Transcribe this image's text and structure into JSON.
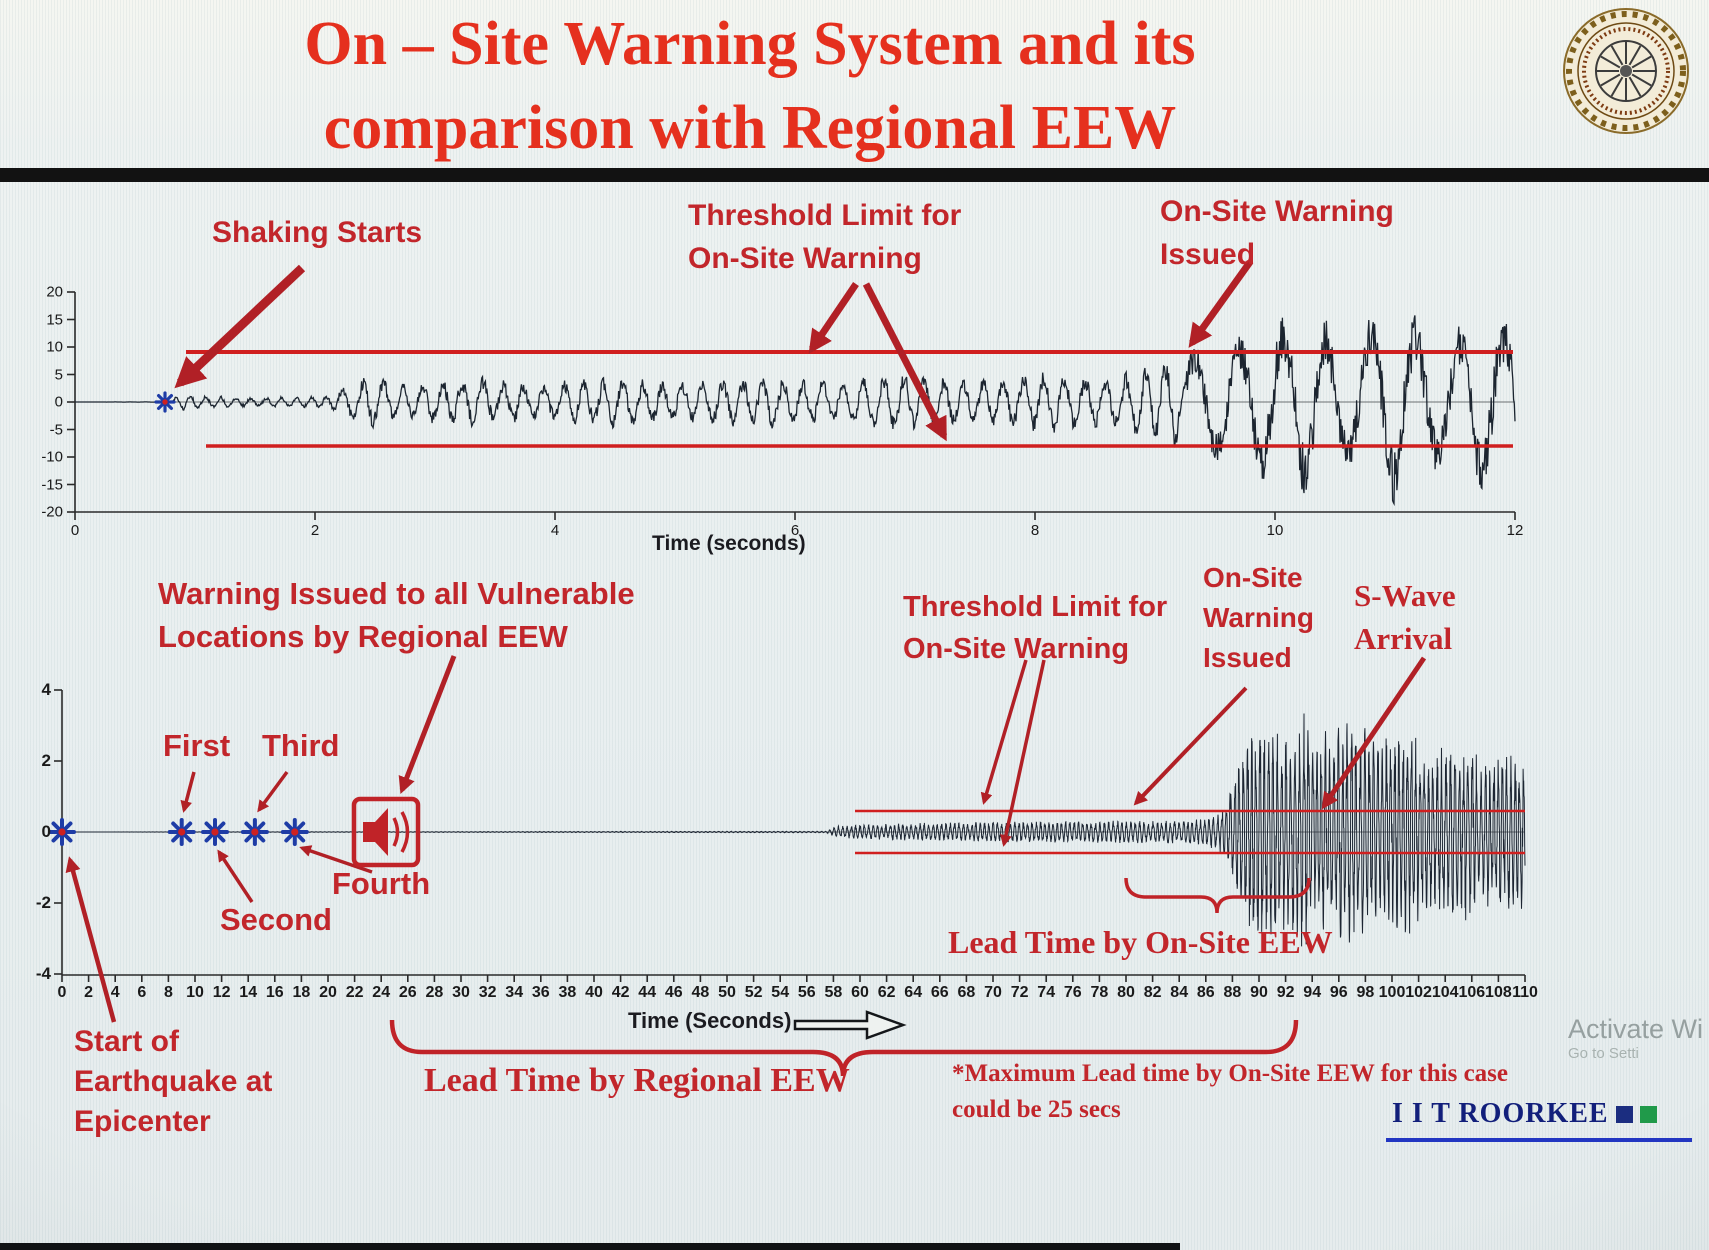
{
  "page": {
    "title_line1": "On – Site Warning System and its",
    "title_line2": "comparison with Regional EEW",
    "footnote_line1": "*Maximum Lead time by On-Site EEW for this case",
    "footnote_line2": "could be 25 secs",
    "footer_brand": "I I T ROORKEE",
    "watermark_line1": "Activate Wi",
    "watermark_line2": "Go to Setti",
    "accent_red": "#c2262b",
    "title_red": "#e5301e",
    "threshold_red": "#d01f1f",
    "waveform_color": "#1d2633",
    "marker_blue": "#1e3ca6"
  },
  "chart_data": [
    {
      "type": "line",
      "title": "",
      "xlabel": "Time (seconds)",
      "ylabel": "",
      "xlim": [
        0,
        12
      ],
      "ylim": [
        -20,
        20
      ],
      "xticks": [
        0,
        2,
        4,
        6,
        8,
        10,
        12
      ],
      "yticks": [
        20,
        15,
        10,
        5,
        0,
        -5,
        -10,
        -15,
        -20
      ],
      "grid": false,
      "threshold_upper": 9,
      "threshold_lower": -8,
      "events": {
        "shaking_starts_s": 0.8,
        "onsite_warning_issued_s": 9.3
      },
      "series": [
        {
          "name": "on-site ground motion",
          "envelope": [
            [
              0,
              0
            ],
            [
              0.78,
              0.03
            ],
            [
              0.88,
              1.4
            ],
            [
              1.4,
              0.8
            ],
            [
              2.1,
              1.0
            ],
            [
              2.45,
              4.8
            ],
            [
              2.8,
              3.0
            ],
            [
              3.3,
              4.6
            ],
            [
              3.9,
              3.2
            ],
            [
              4.5,
              4.4
            ],
            [
              5.1,
              3.4
            ],
            [
              5.7,
              4.6
            ],
            [
              6.3,
              3.6
            ],
            [
              6.9,
              5.0
            ],
            [
              7.5,
              3.8
            ],
            [
              8.1,
              5.2
            ],
            [
              8.6,
              4.2
            ],
            [
              9.0,
              6.5
            ],
            [
              9.35,
              9.5
            ],
            [
              9.8,
              12.5
            ],
            [
              10.2,
              16
            ],
            [
              10.6,
              12
            ],
            [
              11.0,
              17
            ],
            [
              11.4,
              11
            ],
            [
              11.7,
              16
            ],
            [
              12,
              13
            ]
          ]
        }
      ],
      "annotations": {
        "shaking_starts": "Shaking Starts",
        "threshold_line1": "Threshold Limit for",
        "threshold_line2": "On-Site Warning",
        "warning_line1": "On-Site Warning",
        "warning_line2": "Issued"
      }
    },
    {
      "type": "line",
      "title": "",
      "xlabel": "Time (Seconds)",
      "ylabel": "",
      "xlim": [
        0,
        110
      ],
      "ylim": [
        -4,
        4
      ],
      "xticks": [
        0,
        2,
        4,
        6,
        8,
        10,
        12,
        14,
        16,
        18,
        20,
        22,
        24,
        26,
        28,
        30,
        32,
        34,
        36,
        38,
        40,
        42,
        44,
        46,
        48,
        50,
        52,
        54,
        56,
        58,
        60,
        62,
        64,
        66,
        68,
        70,
        72,
        74,
        76,
        78,
        80,
        82,
        84,
        86,
        88,
        90,
        92,
        94,
        96,
        98,
        100,
        102,
        104,
        106,
        108,
        110
      ],
      "yticks": [
        4,
        2,
        0,
        -2,
        -4
      ],
      "grid": false,
      "threshold_upper": 0.6,
      "threshold_lower": -0.6,
      "events": {
        "earthquake_start_s": 0,
        "p_detection_stations_s": [
          9,
          11.5,
          14.5,
          17.5
        ],
        "regional_warning_issued_s": 24,
        "p_wave_at_site_s": 58,
        "onsite_warning_issued_s": 80,
        "s_wave_arrival_s": 93
      },
      "series": [
        {
          "name": "ground motion at vulnerable location",
          "envelope": [
            [
              0,
              0
            ],
            [
              57.5,
              0.02
            ],
            [
              58.2,
              0.15
            ],
            [
              61,
              0.2
            ],
            [
              65,
              0.24
            ],
            [
              70,
              0.26
            ],
            [
              76,
              0.28
            ],
            [
              82,
              0.3
            ],
            [
              86,
              0.34
            ],
            [
              87.6,
              0.7
            ],
            [
              88.6,
              2.4
            ],
            [
              90,
              3.1
            ],
            [
              91.5,
              2.5
            ],
            [
              93,
              3.2
            ],
            [
              95,
              2.6
            ],
            [
              97,
              3.0
            ],
            [
              99,
              2.3
            ],
            [
              101,
              2.8
            ],
            [
              103,
              2.1
            ],
            [
              105,
              2.4
            ],
            [
              107,
              1.9
            ],
            [
              109,
              2.2
            ],
            [
              110,
              1.9
            ]
          ]
        }
      ],
      "annotations": {
        "regional_line1": "Warning Issued to all Vulnerable",
        "regional_line2": "Locations by Regional EEW",
        "threshold_line1": "Threshold Limit for",
        "threshold_line2": "On-Site Warning",
        "onsite_line1": "On-Site",
        "onsite_line2": "Warning",
        "onsite_line3": "Issued",
        "swave_line1": "S-Wave",
        "swave_line2": "Arrival",
        "first": "First",
        "second": "Second",
        "third": "Third",
        "fourth": "Fourth",
        "lead_onsite": "Lead Time by On-Site EEW",
        "lead_regional": "Lead Time by Regional EEW",
        "start_line1": "Start of",
        "start_line2": "Earthquake at",
        "start_line3": "Epicenter"
      }
    }
  ]
}
